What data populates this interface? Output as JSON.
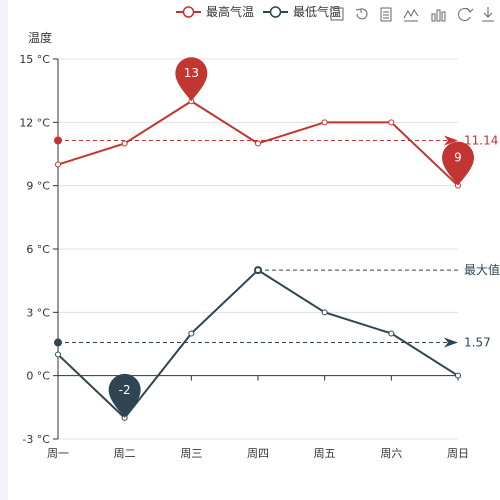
{
  "chart_data": {
    "type": "line",
    "title": "",
    "ylabel": "温度",
    "xlabel": "",
    "categories": [
      "周一",
      "周二",
      "周三",
      "周四",
      "周五",
      "周六",
      "周日"
    ],
    "y_unit": "°C",
    "ylim": [
      -3,
      15
    ],
    "y_ticks": [
      -3,
      0,
      3,
      6,
      9,
      12,
      15
    ],
    "grid": true,
    "legend_position": "top",
    "series": [
      {
        "name": "最高气温",
        "color": "#c23531",
        "values": [
          10,
          11,
          13,
          11,
          12,
          12,
          9
        ],
        "mark_points": [
          {
            "label": "13",
            "index": 2,
            "value": 13
          },
          {
            "label": "9",
            "index": 6,
            "value": 9
          }
        ],
        "mark_line": {
          "label": "11.14",
          "value": 11.14
        }
      },
      {
        "name": "最低气温",
        "color": "#2f4554",
        "values": [
          1,
          -2,
          2,
          5,
          3,
          2,
          0
        ],
        "mark_points": [
          {
            "label": "-2",
            "index": 1,
            "value": -2
          }
        ],
        "mark_line": {
          "label": "1.57",
          "value": 1.57
        },
        "max_line": {
          "label": "最大值",
          "index": 3,
          "value": 5
        }
      }
    ]
  },
  "toolbox": {
    "icons": [
      "mark-icon",
      "restore-icon",
      "data-view-icon",
      "line-type-icon",
      "bar-type-icon",
      "refresh-icon",
      "download-icon"
    ]
  }
}
